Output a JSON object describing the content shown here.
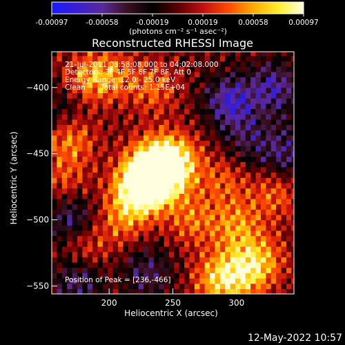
{
  "chart_data": {
    "type": "heatmap",
    "title": "Reconstructed RHESSI Image",
    "xlabel": "Heliocentric X (arcsec)",
    "ylabel": "Heliocentric Y (arcsec)",
    "xlim": [
      155,
      345
    ],
    "ylim": [
      -556,
      -373
    ],
    "x_ticks": [
      200,
      250,
      300
    ],
    "y_ticks": [
      -400,
      -450,
      -500,
      -550
    ],
    "colorbar": {
      "ticks": [
        "-0.00097",
        "-0.00058",
        "-0.00019",
        "0.00019",
        "0.00058",
        "0.00097"
      ],
      "unit_label": "(photons cm⁻² s⁻¹ asec⁻²)",
      "min": -0.00097,
      "max": 0.00097,
      "colors": [
        "#1a1aff",
        "#3a1fd0",
        "#5a2a9a",
        "#3a1020",
        "#000000",
        "#5a0000",
        "#c01010",
        "#ff4a00",
        "#ffaa00",
        "#ffee30",
        "#ffffe0"
      ]
    },
    "annotations": {
      "time_range": "21-Jul-2011 03:58:08.000 to 04:02:08.000",
      "detectors": "Detectors: 3F 4F 5F 6F 7F 8F, Att 0",
      "energy": "Energy Range: 12.0 - 25.0 keV",
      "clean": "Clean",
      "total_counts": "Total counts: 1.15E+04",
      "peak": "Position of Peak = [236,-466]"
    },
    "peak": {
      "x": 236,
      "y": -466,
      "value": 0.00097
    },
    "emission_sources": [
      {
        "x": 237,
        "y": -462,
        "value": 0.00097
      },
      {
        "x": 232,
        "y": -470,
        "value": 0.0008
      },
      {
        "x": 252,
        "y": -455,
        "value": 0.00062
      },
      {
        "x": 220,
        "y": -480,
        "value": 0.00055
      },
      {
        "x": 170,
        "y": -438,
        "value": 0.0005
      },
      {
        "x": 200,
        "y": -390,
        "value": 0.00045
      },
      {
        "x": 180,
        "y": -395,
        "value": 0.00042
      },
      {
        "x": 235,
        "y": -400,
        "value": 0.0004
      },
      {
        "x": 300,
        "y": -505,
        "value": 0.0005
      },
      {
        "x": 320,
        "y": -530,
        "value": 0.00045
      },
      {
        "x": 285,
        "y": -545,
        "value": 0.0006
      },
      {
        "x": 305,
        "y": -540,
        "value": 0.00055
      },
      {
        "x": 330,
        "y": -480,
        "value": 0.0004
      },
      {
        "x": 180,
        "y": -520,
        "value": 0.0004
      },
      {
        "x": 210,
        "y": -500,
        "value": 0.00038
      },
      {
        "x": 265,
        "y": -500,
        "value": 0.00042
      },
      {
        "x": 290,
        "y": -470,
        "value": 0.00035
      },
      {
        "x": 165,
        "y": -470,
        "value": 0.00032
      }
    ],
    "negative_regions": [
      {
        "x": 295,
        "y": -410,
        "value": -0.0007
      },
      {
        "x": 330,
        "y": -400,
        "value": -0.0006
      },
      {
        "x": 170,
        "y": -500,
        "value": -0.00055
      },
      {
        "x": 340,
        "y": -450,
        "value": -0.0005
      },
      {
        "x": 175,
        "y": -545,
        "value": -0.0005
      },
      {
        "x": 230,
        "y": -540,
        "value": -0.00045
      },
      {
        "x": 310,
        "y": -440,
        "value": -0.0004
      },
      {
        "x": 165,
        "y": -415,
        "value": -0.00035
      }
    ]
  },
  "footer": {
    "timestamp": "12-May-2022 10:57"
  }
}
